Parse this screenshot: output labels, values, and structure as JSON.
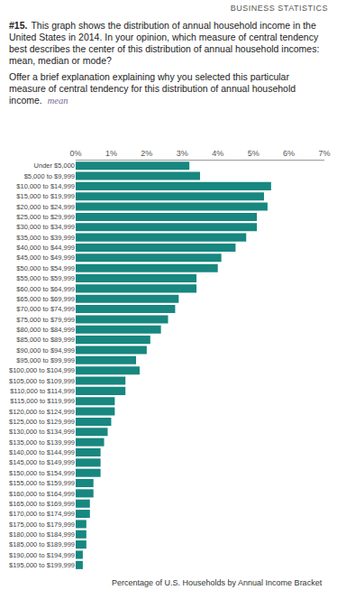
{
  "header": "BUSINESS STATISTICS",
  "question_number": "#15.",
  "question": [
    "This graph shows the distribution of annual household income in the United States in 2014. In your opinion, which measure of central tendency best describes the center of this distribution of annual household incomes: mean, median or mode?",
    "Offer a brief explanation explaining why you selected this particular measure of central tendency for this distribution of annual household income."
  ],
  "handwritten_note": "mean",
  "chart_data": {
    "type": "bar",
    "orientation": "horizontal",
    "xlabel": "Percentage of U.S. Households by Annual Income Bracket",
    "categories": [
      "Under $5,000",
      "$5,000 to $9,999",
      "$10,000 to $14,999",
      "$15,000 to $19,999",
      "$20,000 to $24,999",
      "$25,000 to $29,999",
      "$30,000 to $34,999",
      "$35,000 to $39,999",
      "$40,000 to $44,999",
      "$45,000 to $49,999",
      "$50,000 to $54,999",
      "$55,000 to $59,999",
      "$60,000 to $64,999",
      "$65,000 to $69,999",
      "$70,000 to $74,999",
      "$75,000 to $79,999",
      "$80,000 to $84,999",
      "$85,000 to $89,999",
      "$90,000 to $94,999",
      "$95,000 to $99,999",
      "$100,000 to $104,999",
      "$105,000 to $109,999",
      "$110,000 to $114,999",
      "$115,000 to $119,999",
      "$120,000 to $124,999",
      "$125,000 to $129,999",
      "$130,000 to $134,999",
      "$135,000 to $139,999",
      "$140,000 to $144,999",
      "$145,000 to $149,999",
      "$150,000 to $154,999",
      "$155,000 to $159,999",
      "$160,000 to $164,999",
      "$165,000 to $169,999",
      "$170,000 to $174,999",
      "$175,000 to $179,999",
      "$180,000 to $184,999",
      "$185,000 to $189,999",
      "$190,000 to $194,999",
      "$195,000 to $199,999"
    ],
    "values": [
      3.2,
      3.5,
      5.5,
      5.3,
      5.4,
      5.1,
      5.1,
      4.8,
      4.5,
      4.1,
      4.0,
      3.4,
      3.4,
      2.9,
      2.8,
      2.6,
      2.4,
      2.1,
      2.0,
      1.7,
      1.8,
      1.4,
      1.4,
      1.1,
      1.1,
      1.0,
      0.9,
      0.8,
      0.7,
      0.7,
      0.7,
      0.5,
      0.5,
      0.4,
      0.4,
      0.3,
      0.3,
      0.3,
      0.2,
      0.2
    ],
    "color": "#17877f",
    "xlim": [
      0,
      7
    ],
    "xticks": [
      {
        "value": 0,
        "label": "0%"
      },
      {
        "value": 1,
        "label": "1%"
      },
      {
        "value": 2,
        "label": "2%"
      },
      {
        "value": 3,
        "label": "3%"
      },
      {
        "value": 4,
        "label": "4%"
      },
      {
        "value": 5,
        "label": "5%"
      },
      {
        "value": 6,
        "label": "6%"
      },
      {
        "value": 7,
        "label": "7%"
      }
    ],
    "grid": false
  }
}
